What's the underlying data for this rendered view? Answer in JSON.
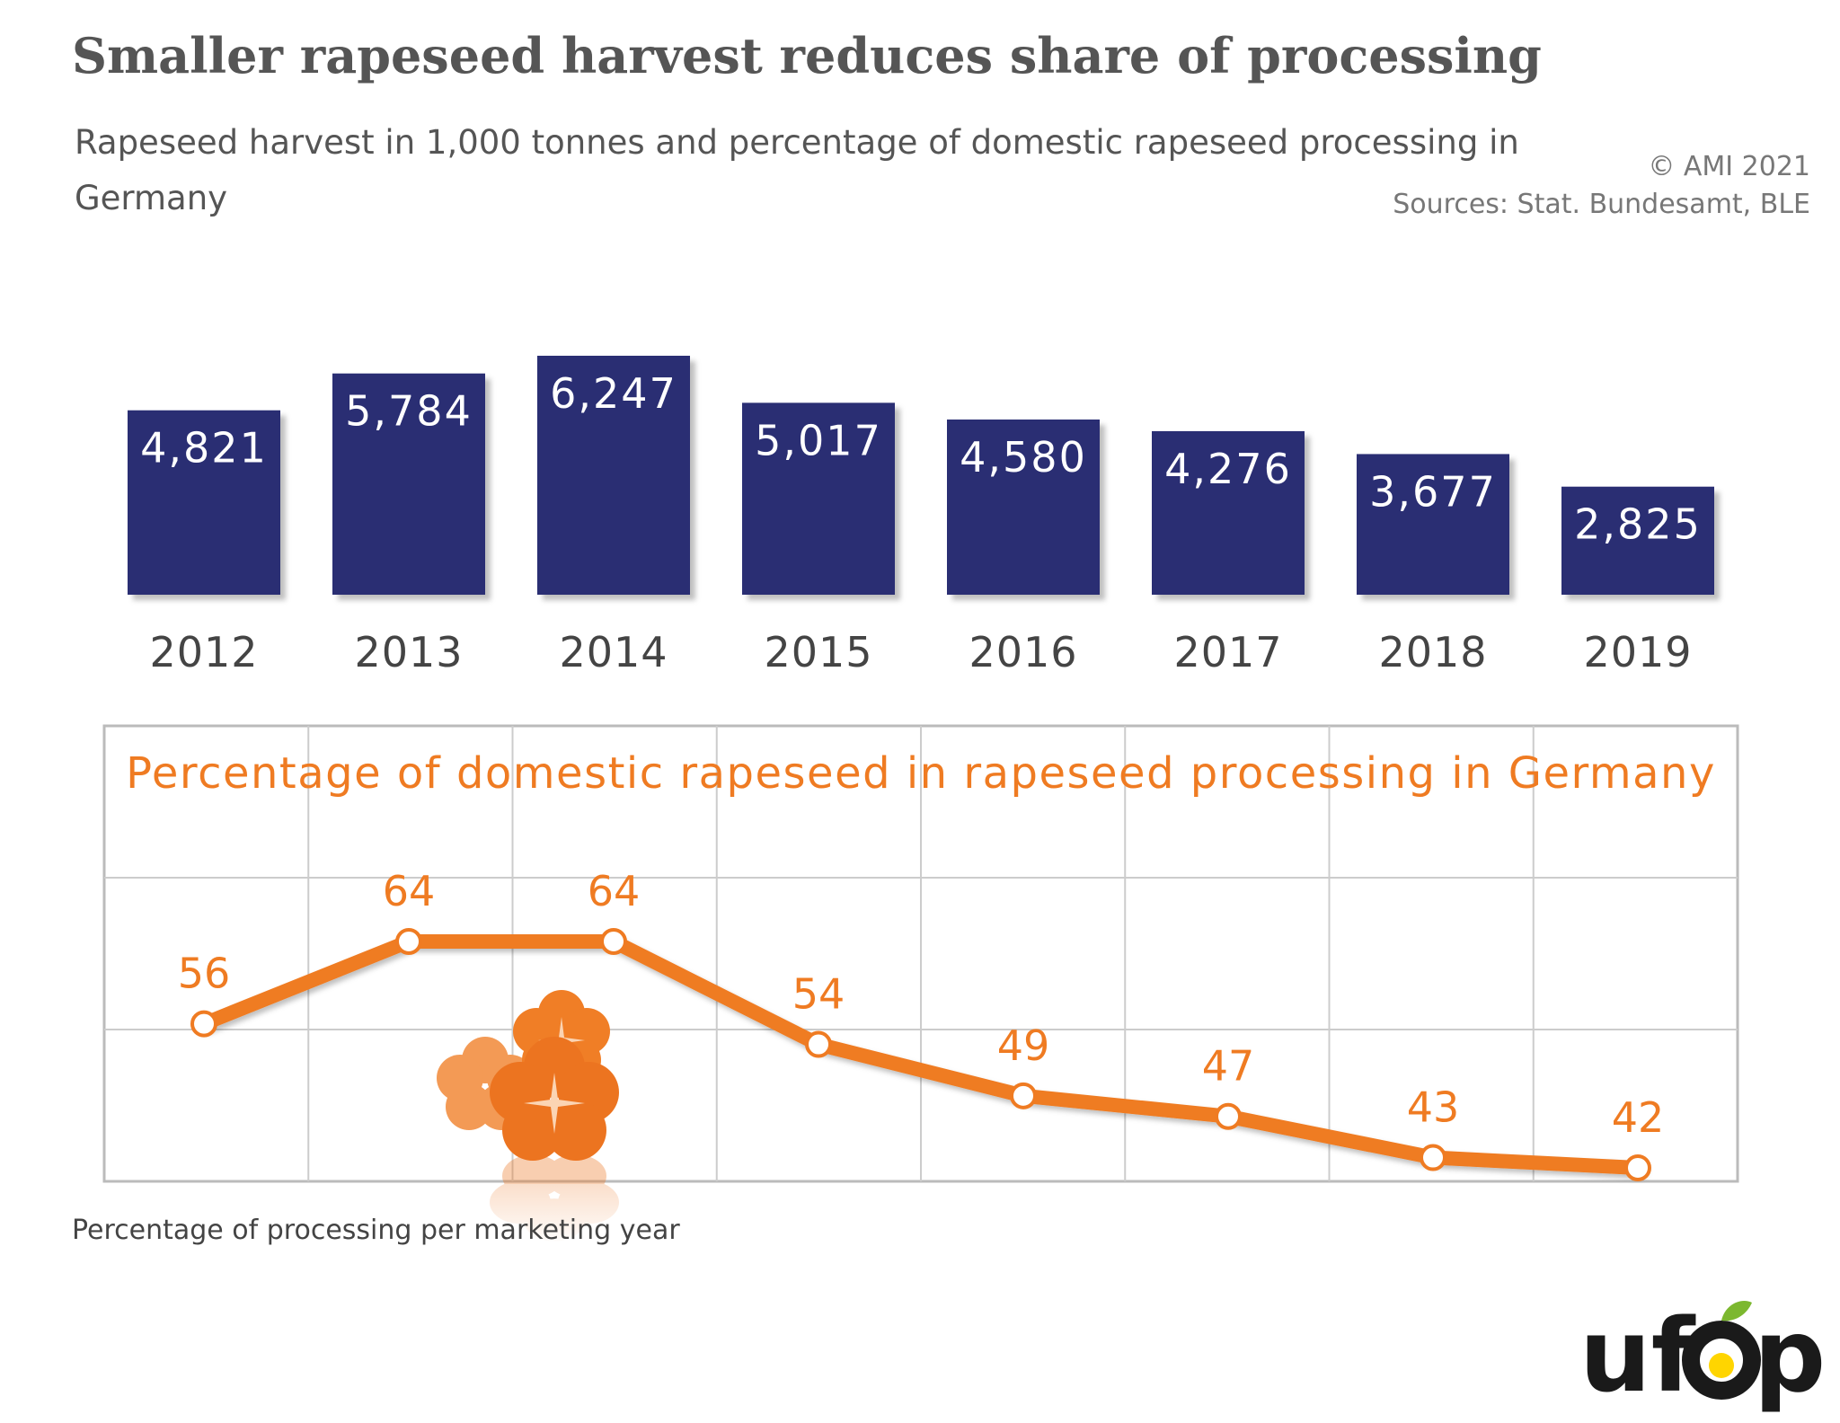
{
  "title": "Smaller rapeseed harvest reduces share of processing",
  "subtitle": "Rapeseed harvest in 1,000 tonnes and percentage of domestic rapeseed processing in Germany",
  "copyright": "© AMI 2021",
  "source": "Sources: Stat. Bundesamt, BLE",
  "footnote": "Percentage of processing per marketing year",
  "logo_text": "ufop",
  "colors": {
    "bar": "#2b2f73",
    "line": "#ef7b22",
    "text_gray": "#555555",
    "grid": "#cccccc"
  },
  "chart_data": [
    {
      "type": "bar",
      "title": "",
      "categories": [
        "2012",
        "2013",
        "2014",
        "2015",
        "2016",
        "2017",
        "2018",
        "2019"
      ],
      "values": [
        4821,
        5784,
        6247,
        5017,
        4580,
        4276,
        3677,
        2825
      ],
      "value_labels": [
        "4,821",
        "5,784",
        "6,247",
        "5,017",
        "4,580",
        "4,276",
        "3,677",
        "2,825"
      ],
      "xlabel": "",
      "ylabel": "",
      "grid": false
    },
    {
      "type": "line",
      "title": "Percentage of domestic rapeseed in rapeseed processing in Germany",
      "categories": [
        "2012",
        "2013",
        "2014",
        "2015",
        "2016",
        "2017",
        "2018",
        "2019"
      ],
      "values": [
        56,
        64,
        64,
        54,
        49,
        47,
        43,
        42
      ],
      "value_labels": [
        "56",
        "64",
        "64",
        "54",
        "49",
        "47",
        "43",
        "42"
      ],
      "xlabel": "",
      "ylabel": "",
      "grid": true
    }
  ]
}
